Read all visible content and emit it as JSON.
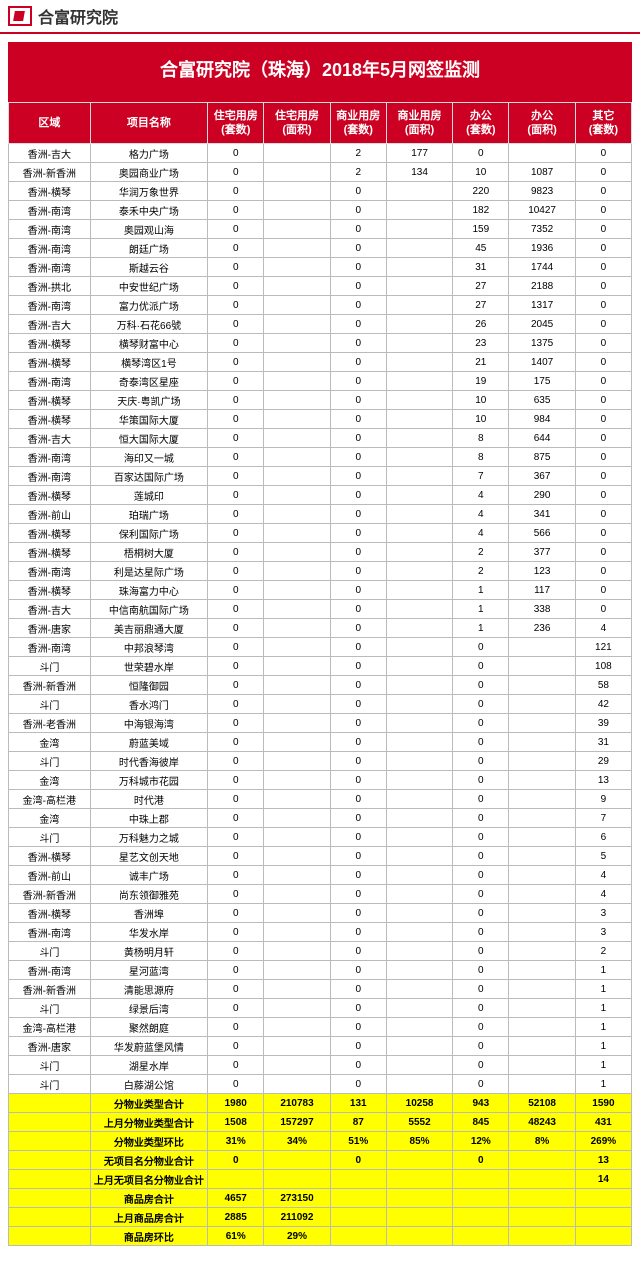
{
  "brand": "合富研究院",
  "title": "合富研究院（珠海）2018年5月网签监测",
  "columns": [
    "区域",
    "项目名称",
    "住宅用房\n(套数)",
    "住宅用房\n(面积)",
    "商业用房\n(套数)",
    "商业用房\n(面积)",
    "办公\n(套数)",
    "办公\n(面积)",
    "其它\n(套数)"
  ],
  "colors": {
    "header_bg": "#cc0022",
    "header_fg": "#ffffff",
    "row_bg": "#ffffff",
    "summary_bg": "#ffff00",
    "border": "#bbbbbb"
  },
  "rows": [
    [
      "香洲-吉大",
      "格力广场",
      "0",
      "",
      "2",
      "177",
      "0",
      "",
      "0"
    ],
    [
      "香洲-新香洲",
      "奥园商业广场",
      "0",
      "",
      "2",
      "134",
      "10",
      "1087",
      "0"
    ],
    [
      "香洲-横琴",
      "华润万象世界",
      "0",
      "",
      "0",
      "",
      "220",
      "9823",
      "0"
    ],
    [
      "香洲-南湾",
      "泰禾中央广场",
      "0",
      "",
      "0",
      "",
      "182",
      "10427",
      "0"
    ],
    [
      "香洲-南湾",
      "奥园观山海",
      "0",
      "",
      "0",
      "",
      "159",
      "7352",
      "0"
    ],
    [
      "香洲-南湾",
      "朗廷广场",
      "0",
      "",
      "0",
      "",
      "45",
      "1936",
      "0"
    ],
    [
      "香洲-南湾",
      "斯越云谷",
      "0",
      "",
      "0",
      "",
      "31",
      "1744",
      "0"
    ],
    [
      "香洲-拱北",
      "中安世纪广场",
      "0",
      "",
      "0",
      "",
      "27",
      "2188",
      "0"
    ],
    [
      "香洲-南湾",
      "富力优派广场",
      "0",
      "",
      "0",
      "",
      "27",
      "1317",
      "0"
    ],
    [
      "香洲-吉大",
      "万科·石花66號",
      "0",
      "",
      "0",
      "",
      "26",
      "2045",
      "0"
    ],
    [
      "香洲-横琴",
      "横琴财富中心",
      "0",
      "",
      "0",
      "",
      "23",
      "1375",
      "0"
    ],
    [
      "香洲-横琴",
      "横琴湾区1号",
      "0",
      "",
      "0",
      "",
      "21",
      "1407",
      "0"
    ],
    [
      "香洲-南湾",
      "奇泰湾区星座",
      "0",
      "",
      "0",
      "",
      "19",
      "175",
      "0"
    ],
    [
      "香洲-横琴",
      "天庆·粤凯广场",
      "0",
      "",
      "0",
      "",
      "10",
      "635",
      "0"
    ],
    [
      "香洲-横琴",
      "华策国际大厦",
      "0",
      "",
      "0",
      "",
      "10",
      "984",
      "0"
    ],
    [
      "香洲-吉大",
      "恒大国际大厦",
      "0",
      "",
      "0",
      "",
      "8",
      "644",
      "0"
    ],
    [
      "香洲-南湾",
      "海印又一城",
      "0",
      "",
      "0",
      "",
      "8",
      "875",
      "0"
    ],
    [
      "香洲-南湾",
      "百家达国际广场",
      "0",
      "",
      "0",
      "",
      "7",
      "367",
      "0"
    ],
    [
      "香洲-横琴",
      "莲城印",
      "0",
      "",
      "0",
      "",
      "4",
      "290",
      "0"
    ],
    [
      "香洲-前山",
      "珀瑞广场",
      "0",
      "",
      "0",
      "",
      "4",
      "341",
      "0"
    ],
    [
      "香洲-横琴",
      "保利国际广场",
      "0",
      "",
      "0",
      "",
      "4",
      "566",
      "0"
    ],
    [
      "香洲-横琴",
      "梧桐树大厦",
      "0",
      "",
      "0",
      "",
      "2",
      "377",
      "0"
    ],
    [
      "香洲-南湾",
      "利是达星际广场",
      "0",
      "",
      "0",
      "",
      "2",
      "123",
      "0"
    ],
    [
      "香洲-横琴",
      "珠海富力中心",
      "0",
      "",
      "0",
      "",
      "1",
      "117",
      "0"
    ],
    [
      "香洲-吉大",
      "中信南航国际广场",
      "0",
      "",
      "0",
      "",
      "1",
      "338",
      "0"
    ],
    [
      "香洲-唐家",
      "美吉丽鼎通大厦",
      "0",
      "",
      "0",
      "",
      "1",
      "236",
      "4"
    ],
    [
      "香洲-南湾",
      "中邦浪琴湾",
      "0",
      "",
      "0",
      "",
      "0",
      "",
      "121"
    ],
    [
      "斗门",
      "世荣碧水岸",
      "0",
      "",
      "0",
      "",
      "0",
      "",
      "108"
    ],
    [
      "香洲-新香洲",
      "恒隆御园",
      "0",
      "",
      "0",
      "",
      "0",
      "",
      "58"
    ],
    [
      "斗门",
      "香水鸿门",
      "0",
      "",
      "0",
      "",
      "0",
      "",
      "42"
    ],
    [
      "香洲-老香洲",
      "中海银海湾",
      "0",
      "",
      "0",
      "",
      "0",
      "",
      "39"
    ],
    [
      "金湾",
      "蔚蓝美域",
      "0",
      "",
      "0",
      "",
      "0",
      "",
      "31"
    ],
    [
      "斗门",
      "时代香海彼岸",
      "0",
      "",
      "0",
      "",
      "0",
      "",
      "29"
    ],
    [
      "金湾",
      "万科城市花园",
      "0",
      "",
      "0",
      "",
      "0",
      "",
      "13"
    ],
    [
      "金湾-高栏港",
      "时代港",
      "0",
      "",
      "0",
      "",
      "0",
      "",
      "9"
    ],
    [
      "金湾",
      "中珠上郡",
      "0",
      "",
      "0",
      "",
      "0",
      "",
      "7"
    ],
    [
      "斗门",
      "万科魅力之城",
      "0",
      "",
      "0",
      "",
      "0",
      "",
      "6"
    ],
    [
      "香洲-横琴",
      "星艺文创天地",
      "0",
      "",
      "0",
      "",
      "0",
      "",
      "5"
    ],
    [
      "香洲-前山",
      "诚丰广场",
      "0",
      "",
      "0",
      "",
      "0",
      "",
      "4"
    ],
    [
      "香洲-新香洲",
      "尚东领御雅苑",
      "0",
      "",
      "0",
      "",
      "0",
      "",
      "4"
    ],
    [
      "香洲-横琴",
      "香洲埠",
      "0",
      "",
      "0",
      "",
      "0",
      "",
      "3"
    ],
    [
      "香洲-南湾",
      "华发水岸",
      "0",
      "",
      "0",
      "",
      "0",
      "",
      "3"
    ],
    [
      "斗门",
      "黄杨明月轩",
      "0",
      "",
      "0",
      "",
      "0",
      "",
      "2"
    ],
    [
      "香洲-南湾",
      "星河蓝湾",
      "0",
      "",
      "0",
      "",
      "0",
      "",
      "1"
    ],
    [
      "香洲-新香洲",
      "清能思源府",
      "0",
      "",
      "0",
      "",
      "0",
      "",
      "1"
    ],
    [
      "斗门",
      "绿景后湾",
      "0",
      "",
      "0",
      "",
      "0",
      "",
      "1"
    ],
    [
      "金湾-高栏港",
      "聚然朗庭",
      "0",
      "",
      "0",
      "",
      "0",
      "",
      "1"
    ],
    [
      "香洲-唐家",
      "华发蔚蓝堡风情",
      "0",
      "",
      "0",
      "",
      "0",
      "",
      "1"
    ],
    [
      "斗门",
      "湖星水岸",
      "0",
      "",
      "0",
      "",
      "0",
      "",
      "1"
    ],
    [
      "斗门",
      "白藤湖公馆",
      "0",
      "",
      "0",
      "",
      "0",
      "",
      "1"
    ]
  ],
  "summary": [
    [
      "",
      "分物业类型合计",
      "1980",
      "210783",
      "131",
      "10258",
      "943",
      "52108",
      "1590"
    ],
    [
      "",
      "上月分物业类型合计",
      "1508",
      "157297",
      "87",
      "5552",
      "845",
      "48243",
      "431"
    ],
    [
      "",
      "分物业类型环比",
      "31%",
      "34%",
      "51%",
      "85%",
      "12%",
      "8%",
      "269%"
    ],
    [
      "",
      "无项目名分物业合计",
      "0",
      "",
      "0",
      "",
      "0",
      "",
      "13"
    ],
    [
      "",
      "上月无项目名分物业合计",
      "",
      "",
      "",
      "",
      "",
      "",
      "14"
    ],
    [
      "",
      "商品房合计",
      "4657",
      "273150",
      "",
      "",
      "",
      "",
      ""
    ],
    [
      "",
      "上月商品房合计",
      "2885",
      "211092",
      "",
      "",
      "",
      "",
      ""
    ],
    [
      "",
      "商品房环比",
      "61%",
      "29%",
      "",
      "",
      "",
      "",
      ""
    ]
  ]
}
